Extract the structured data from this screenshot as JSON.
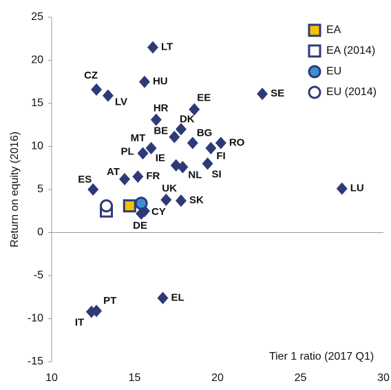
{
  "chart_data": {
    "type": "scatter",
    "x_label": "Tier 1 ratio (2017 Q1)",
    "y_label": "Return on equity (2016)",
    "xlim": [
      10,
      30
    ],
    "xticks": [
      10,
      15,
      20,
      25,
      30
    ],
    "ylim": [
      -15,
      25
    ],
    "yticks": [
      -15,
      -10,
      -5,
      0,
      5,
      10,
      15,
      20,
      25
    ],
    "legend": "top-right",
    "series": [
      {
        "marker": "diamond",
        "color": "#2e3a78",
        "labels": [
          "LT",
          "HU",
          "CZ",
          "LV",
          "SE",
          "EE",
          "HR",
          "DK",
          "BE",
          "BG",
          "RO",
          "MT",
          "PL",
          "FI",
          "IE",
          "NL",
          "SI",
          "AT",
          "FR",
          "ES",
          "LU",
          "UK",
          "SK",
          "CY",
          "DE",
          "EL",
          "PT",
          "IT"
        ],
        "x": [
          16.1,
          15.6,
          12.7,
          13.4,
          22.7,
          18.6,
          16.3,
          17.8,
          17.4,
          18.5,
          20.2,
          16.0,
          15.5,
          19.6,
          17.5,
          17.9,
          19.4,
          14.4,
          15.2,
          12.5,
          27.5,
          16.9,
          17.8,
          15.6,
          15.4,
          16.7,
          12.7,
          12.4
        ],
        "values": [
          21.5,
          17.5,
          16.6,
          15.9,
          16.1,
          14.3,
          13.1,
          12.0,
          11.1,
          10.4,
          10.4,
          9.8,
          9.2,
          9.8,
          7.8,
          7.6,
          8.0,
          6.2,
          6.5,
          5.0,
          5.1,
          3.8,
          3.7,
          2.5,
          2.2,
          -7.6,
          -9.1,
          -9.2
        ]
      },
      {
        "name": "EA",
        "marker": "square",
        "color": "#f5c400",
        "x": [
          14.7
        ],
        "values": [
          3.1
        ]
      },
      {
        "name": "EA (2014)",
        "marker": "square-open",
        "color": "#ffffff",
        "x": [
          13.3
        ],
        "values": [
          2.5
        ]
      },
      {
        "name": "EU",
        "marker": "circle",
        "color": "#3c8fd6",
        "x": [
          15.4
        ],
        "values": [
          3.4
        ]
      },
      {
        "name": "EU (2014)",
        "marker": "circle-open",
        "color": "#ffffff",
        "x": [
          13.3
        ],
        "values": [
          3.1
        ]
      }
    ]
  }
}
